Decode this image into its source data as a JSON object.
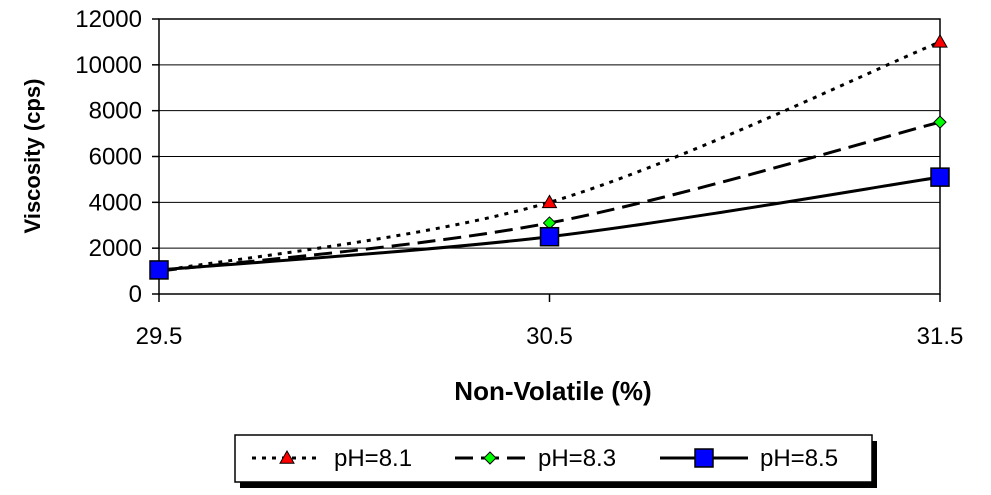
{
  "chart_data": {
    "type": "line",
    "title": "",
    "xlabel": "Non-Volatile (%)",
    "ylabel": "Viscosity (cps)",
    "x": [
      29.5,
      30.5,
      31.5
    ],
    "x_tick_labels": [
      "29.5",
      "30.5",
      "31.5"
    ],
    "xlim": [
      29.5,
      31.5
    ],
    "ylim": [
      0,
      12000
    ],
    "y_ticks": [
      0,
      2000,
      4000,
      6000,
      8000,
      10000,
      12000
    ],
    "y_tick_labels": [
      "0",
      "2000",
      "4000",
      "6000",
      "8000",
      "10000",
      "12000"
    ],
    "grid": "horizontal",
    "legend_position": "bottom",
    "series": [
      {
        "name": "pH=8.1",
        "values": [
          1000,
          4000,
          11000
        ],
        "color": "#000000",
        "marker": "triangle",
        "marker_color": "#ff0000",
        "line_style": "dotted"
      },
      {
        "name": "pH=8.3",
        "values": [
          1000,
          3100,
          7500
        ],
        "color": "#000000",
        "marker": "diamond",
        "marker_color": "#00ff00",
        "line_style": "dashed"
      },
      {
        "name": "pH=8.5",
        "values": [
          1050,
          2500,
          5100
        ],
        "color": "#000000",
        "marker": "square",
        "marker_color": "#0000ff",
        "line_style": "solid"
      }
    ]
  }
}
